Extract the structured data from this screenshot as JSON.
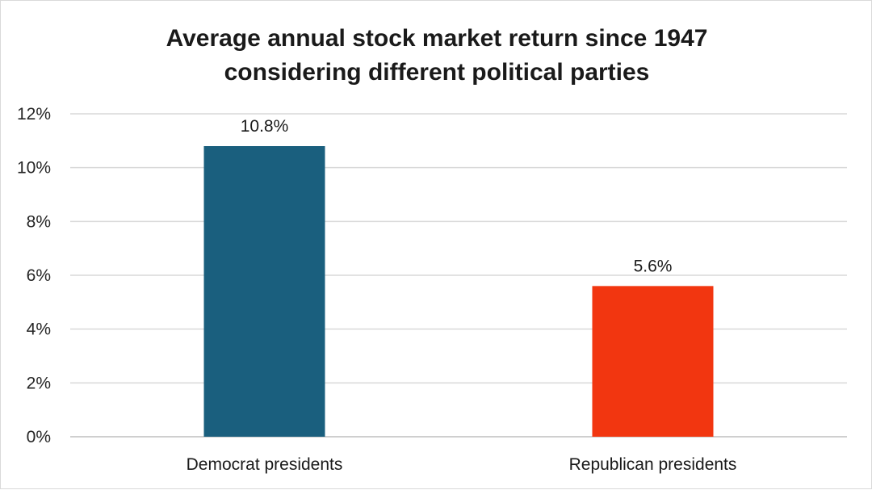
{
  "chart_data": {
    "type": "bar",
    "title": "Average annual stock market return since 1947 considering different political parties",
    "categories": [
      "Democrat presidents",
      "Republican presidents"
    ],
    "values": [
      10.8,
      5.6
    ],
    "data_labels": [
      "10.8%",
      "5.6%"
    ],
    "colors": [
      "#1a5f7e",
      "#f23610"
    ],
    "ylim": [
      0,
      12
    ],
    "yticks": [
      0,
      2,
      4,
      6,
      8,
      10,
      12
    ],
    "ytick_labels": [
      "0%",
      "2%",
      "4%",
      "6%",
      "8%",
      "10%",
      "12%"
    ],
    "xlabel": "",
    "ylabel": "",
    "grid": true,
    "legend": "none"
  }
}
